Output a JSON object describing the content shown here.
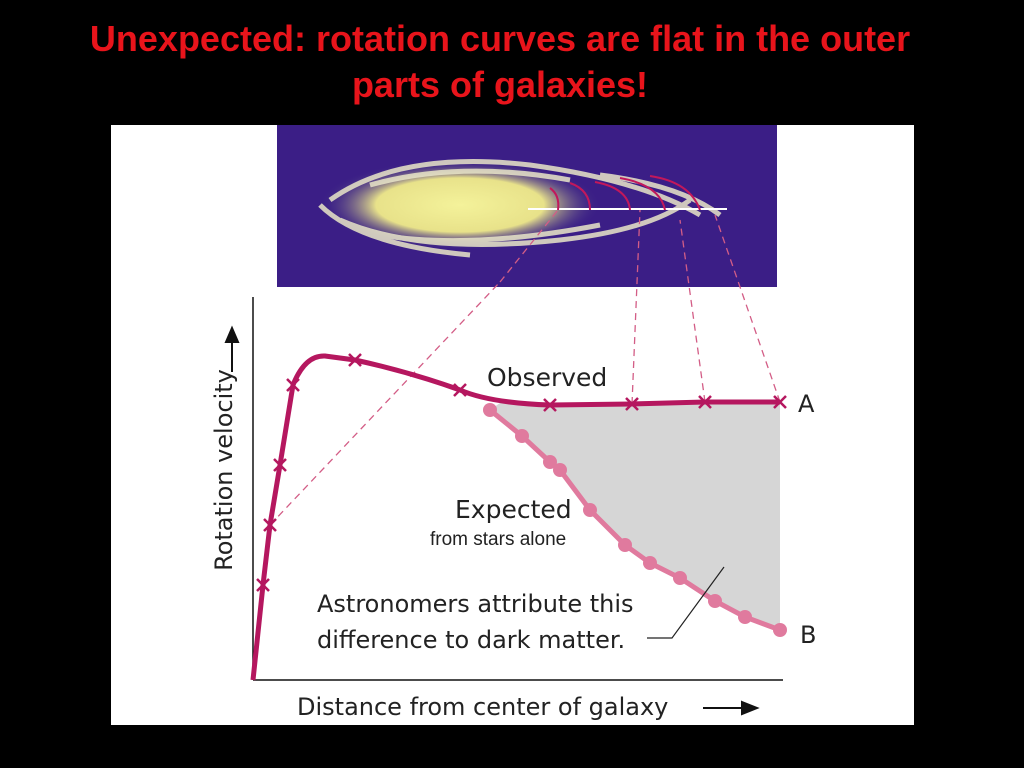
{
  "title": "Unexpected: rotation curves are flat in the outer parts of galaxies!",
  "diagram": {
    "y_axis_label": "Rotation velocity",
    "x_axis_label": "Distance from center of galaxy",
    "observed_label": "Observed",
    "expected_label": "Expected",
    "expected_note": "from stars alone",
    "annotation_lines": [
      "Astronomers attribute this",
      "difference to dark matter."
    ],
    "point_a": "A",
    "point_b": "B"
  }
}
